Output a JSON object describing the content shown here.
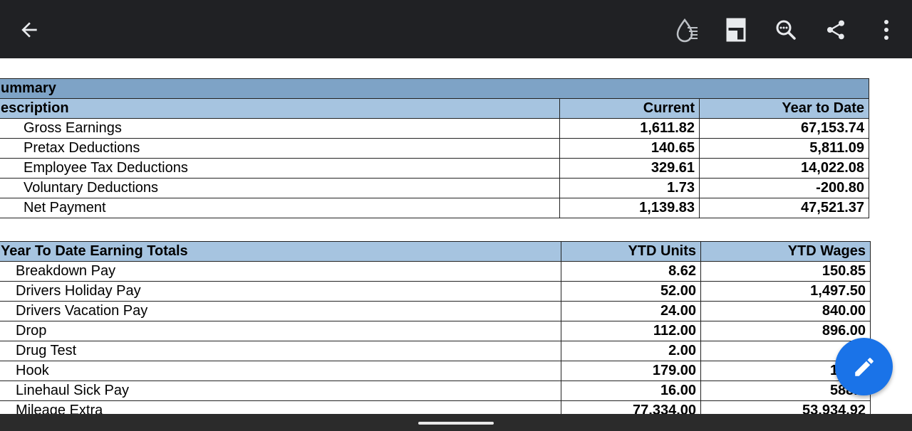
{
  "toolbar": {
    "icons": [
      "back-arrow-icon",
      "ink-reader-mode-icon",
      "bookmark-icon",
      "search-icon",
      "share-icon",
      "more-vert-icon"
    ]
  },
  "summary": {
    "title": "ummary",
    "header": {
      "description": "escription",
      "current": "Current",
      "ytd": "Year to Date"
    },
    "rows": [
      {
        "label": "Gross Earnings",
        "current": "1,611.82",
        "ytd": "67,153.74"
      },
      {
        "label": "Pretax Deductions",
        "current": "140.65",
        "ytd": "5,811.09"
      },
      {
        "label": "Employee Tax Deductions",
        "current": "329.61",
        "ytd": "14,022.08"
      },
      {
        "label": "Voluntary Deductions",
        "current": "1.73",
        "ytd": "-200.80"
      },
      {
        "label": "Net Payment",
        "current": "1,139.83",
        "ytd": "47,521.37"
      }
    ]
  },
  "ytd_earnings": {
    "header": {
      "title": "Year To Date Earning Totals",
      "units": "YTD Units",
      "wages": "YTD Wages"
    },
    "rows": [
      {
        "label": "Breakdown Pay",
        "units": "8.62",
        "wages": "150.85"
      },
      {
        "label": "Drivers Holiday Pay",
        "units": "52.00",
        "wages": "1,497.50"
      },
      {
        "label": "Drivers Vacation Pay",
        "units": "24.00",
        "wages": "840.00"
      },
      {
        "label": "Drop",
        "units": "112.00",
        "wages": "896.00"
      },
      {
        "label": "Drug Test",
        "units": "2.00",
        "wages": "30."
      },
      {
        "label": "Hook",
        "units": "179.00",
        "wages": "1,432"
      },
      {
        "label": "Linehaul Sick Pay",
        "units": "16.00",
        "wages": "588.0"
      },
      {
        "label": "Mileage Extra",
        "units": "77,334.00",
        "wages": "53,934.92"
      }
    ]
  },
  "fab": {
    "icon": "edit-pencil-icon",
    "color": "#1a73e8"
  },
  "colors": {
    "topbar": "#202124",
    "section_title_bg": "#7ea3c6",
    "header_bg": "#a6c4e0"
  }
}
